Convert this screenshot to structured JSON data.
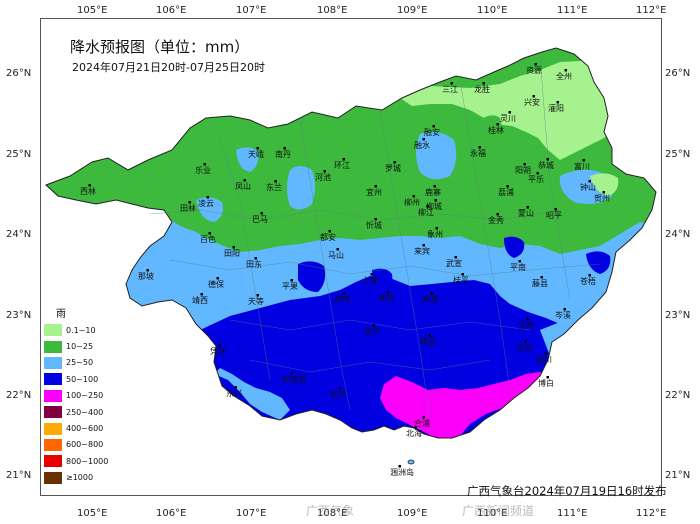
{
  "map": {
    "title": "降水预报图（单位：mm）",
    "subtitle": "2024年07月21日20时-07月25日20时",
    "credit": "广西气象台2024年07月19日16时发布",
    "watermark_left": "广西气象",
    "watermark_right": "广西新闻频道",
    "lon_ticks": [
      "105°E",
      "106°E",
      "107°E",
      "108°E",
      "109°E",
      "110°E",
      "111°E",
      "112°E"
    ],
    "lat_ticks": [
      "26°N",
      "25°N",
      "24°N",
      "23°N",
      "22°N",
      "21°N"
    ],
    "legend": {
      "title": "雨",
      "items": [
        {
          "label": "0.1~10",
          "color": "#a6f28f"
        },
        {
          "label": "10~25",
          "color": "#3dba3d"
        },
        {
          "label": "25~50",
          "color": "#61b8ff"
        },
        {
          "label": "50~100",
          "color": "#0000e1"
        },
        {
          "label": "100~250",
          "color": "#fa00fa"
        },
        {
          "label": "250~400",
          "color": "#800040"
        },
        {
          "label": "400~600",
          "color": "#ffaa00"
        },
        {
          "label": "600~800",
          "color": "#ff6600"
        },
        {
          "label": "800~1000",
          "color": "#e60000"
        },
        {
          "label": "≥1000",
          "color": "#663300"
        }
      ]
    },
    "cities": [
      {
        "name": "资源"
      },
      {
        "name": "全州"
      },
      {
        "name": "三江"
      },
      {
        "name": "龙胜"
      },
      {
        "name": "兴安"
      },
      {
        "name": "灌阳"
      },
      {
        "name": "灵川"
      },
      {
        "name": "桂林"
      },
      {
        "name": "融安"
      },
      {
        "name": "融水"
      },
      {
        "name": "永福"
      },
      {
        "name": "阳朔"
      },
      {
        "name": "恭城"
      },
      {
        "name": "富川"
      },
      {
        "name": "平乐"
      },
      {
        "name": "荔浦"
      },
      {
        "name": "钟山"
      },
      {
        "name": "贺州"
      },
      {
        "name": "天峨"
      },
      {
        "name": "南丹"
      },
      {
        "name": "乐业"
      },
      {
        "name": "环江"
      },
      {
        "name": "罗城"
      },
      {
        "name": "西林"
      },
      {
        "name": "凤山"
      },
      {
        "name": "东兰"
      },
      {
        "name": "河池"
      },
      {
        "name": "宜州"
      },
      {
        "name": "柳城"
      },
      {
        "name": "鹿寨"
      },
      {
        "name": "田林"
      },
      {
        "name": "凌云"
      },
      {
        "name": "巴马"
      },
      {
        "name": "柳州"
      },
      {
        "name": "柳江"
      },
      {
        "name": "金秀"
      },
      {
        "name": "蒙山"
      },
      {
        "name": "昭平"
      },
      {
        "name": "百色"
      },
      {
        "name": "田阳"
      },
      {
        "name": "都安"
      },
      {
        "name": "忻城"
      },
      {
        "name": "象州"
      },
      {
        "name": "马山"
      },
      {
        "name": "田东"
      },
      {
        "name": "来宾"
      },
      {
        "name": "武宣"
      },
      {
        "name": "平南"
      },
      {
        "name": "藤县"
      },
      {
        "name": "苍梧"
      },
      {
        "name": "那坡"
      },
      {
        "name": "德保"
      },
      {
        "name": "靖西"
      },
      {
        "name": "平果"
      },
      {
        "name": "上林"
      },
      {
        "name": "宾阳"
      },
      {
        "name": "贵港"
      },
      {
        "name": "桂平"
      },
      {
        "name": "岑溪"
      },
      {
        "name": "天等"
      },
      {
        "name": "武鸣"
      },
      {
        "name": "玉林"
      },
      {
        "name": "北流"
      },
      {
        "name": "南宁"
      },
      {
        "name": "横县"
      },
      {
        "name": "陆川"
      },
      {
        "name": "博白"
      },
      {
        "name": "合浦"
      },
      {
        "name": "北海"
      },
      {
        "name": "钦州"
      },
      {
        "name": "防城港"
      },
      {
        "name": "东兴"
      },
      {
        "name": "凭祥"
      },
      {
        "name": "涠洲岛"
      }
    ]
  }
}
